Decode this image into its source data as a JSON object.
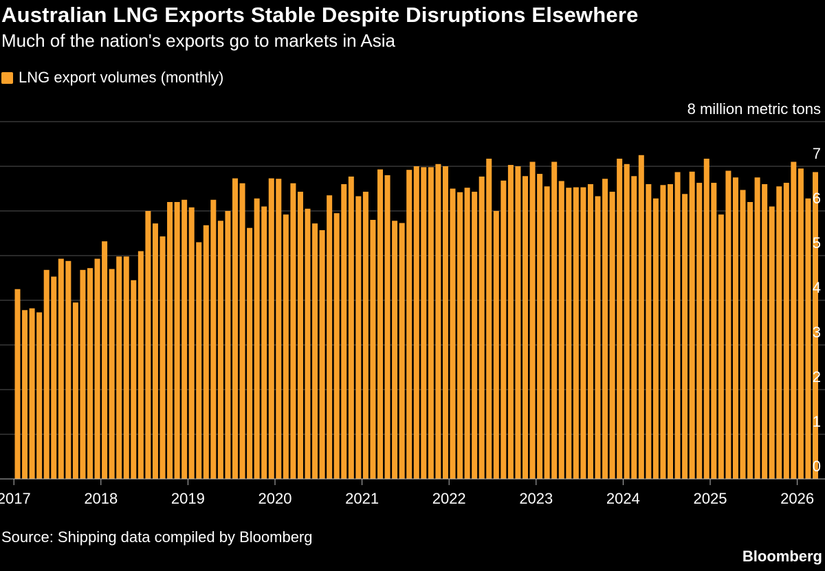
{
  "colors": {
    "background": "#000000",
    "bar": "#F9A12B",
    "grid": "#555555",
    "text": "#FFFFFF"
  },
  "chart_data": {
    "type": "bar",
    "title": "Australian LNG Exports Stable Despite Disruptions Elsewhere",
    "subtitle": "Much of the nation's exports go to markets in Asia",
    "series": [
      {
        "name": "LNG export volumes (monthly)",
        "color": "#F9A12B",
        "start": "2017-01",
        "frequency": "monthly",
        "values": [
          4.25,
          3.78,
          3.82,
          3.73,
          4.68,
          4.53,
          4.93,
          4.88,
          3.95,
          4.68,
          4.72,
          4.93,
          5.32,
          4.7,
          4.98,
          4.98,
          4.45,
          5.1,
          6.0,
          5.72,
          5.43,
          6.2,
          6.2,
          6.25,
          6.08,
          5.3,
          5.68,
          6.25,
          5.78,
          6.0,
          6.73,
          6.62,
          5.62,
          6.28,
          6.1,
          6.73,
          6.72,
          5.92,
          6.62,
          6.43,
          6.05,
          5.72,
          5.57,
          6.35,
          5.95,
          6.6,
          6.77,
          6.33,
          6.43,
          5.8,
          6.93,
          6.8,
          5.78,
          5.73,
          6.92,
          7.0,
          6.98,
          6.98,
          7.05,
          7.0,
          6.5,
          6.42,
          6.52,
          6.43,
          6.77,
          7.17,
          6.0,
          6.68,
          7.03,
          7.0,
          6.78,
          7.1,
          6.83,
          6.55,
          7.1,
          6.67,
          6.52,
          6.53,
          6.53,
          6.6,
          6.33,
          6.72,
          6.43,
          7.17,
          7.05,
          6.78,
          7.25,
          6.6,
          6.28,
          6.58,
          6.6,
          6.87,
          6.38,
          6.88,
          6.63,
          7.17,
          6.63,
          5.92,
          6.9,
          6.75,
          6.47,
          6.2,
          6.75,
          6.6,
          6.1,
          6.55,
          6.63,
          7.1,
          6.95,
          6.28,
          6.87
        ]
      }
    ],
    "x_tick_labels": [
      "2017",
      "2018",
      "2019",
      "2020",
      "2021",
      "2022",
      "2023",
      "2024",
      "2025",
      "2026"
    ],
    "y_ticks": [
      0,
      1,
      2,
      3,
      4,
      5,
      6,
      7,
      8
    ],
    "y_unit_label": "8 million metric tons",
    "ylim": [
      0,
      8
    ],
    "grid": true,
    "legend_position": "top-left"
  },
  "footer": {
    "source": "Source: Shipping data compiled by Bloomberg",
    "brand": "Bloomberg"
  }
}
